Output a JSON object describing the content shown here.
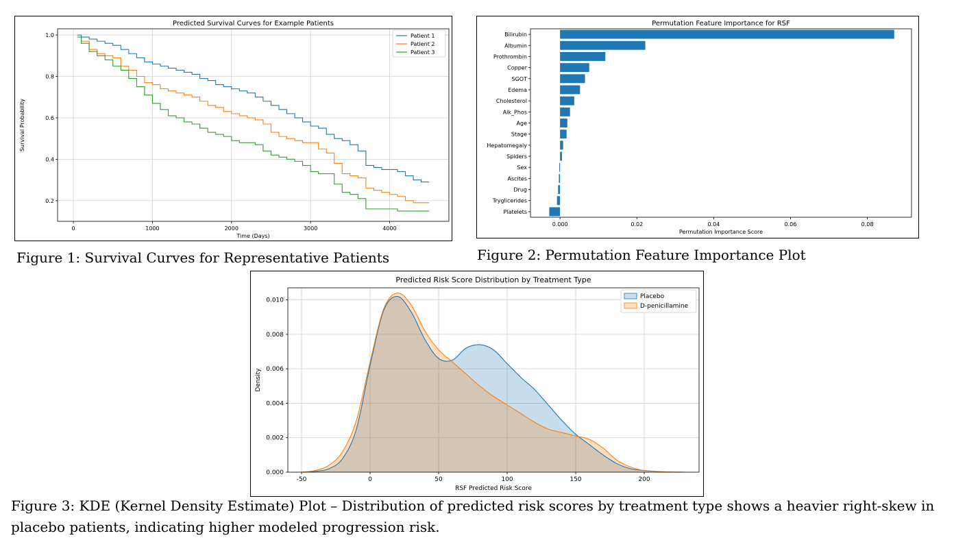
{
  "captions": {
    "fig1": "Figure 1: Survival Curves for Representative Patients",
    "fig2": "Figure 2: Permutation Feature Importance Plot",
    "fig3_line1": "Figure 3: KDE (Kernel Density Estimate) Plot – Distribution of predicted risk scores by treatment type shows a heavier right-skew in",
    "fig3_line2": "placebo patients, indicating higher modeled progression risk."
  },
  "chart_data": [
    {
      "type": "line",
      "title": "Predicted Survival Curves for Example Patients",
      "xlabel": "Time (Days)",
      "ylabel": "Survival Probability",
      "xlim": [
        -200,
        4750
      ],
      "ylim": [
        0.1,
        1.03
      ],
      "xticks": [
        0,
        1000,
        2000,
        3000,
        4000
      ],
      "yticks": [
        0.2,
        0.4,
        0.6,
        0.8,
        1.0
      ],
      "grid": true,
      "legend_position": "top-right",
      "step": true,
      "series": [
        {
          "name": "Patient 1",
          "color": "#1f77b4",
          "x": [
            50,
            100,
            200,
            300,
            400,
            500,
            600,
            700,
            800,
            900,
            1000,
            1100,
            1200,
            1300,
            1400,
            1500,
            1600,
            1700,
            1800,
            1900,
            2000,
            2100,
            2200,
            2300,
            2400,
            2500,
            2600,
            2700,
            2800,
            2900,
            3000,
            3100,
            3200,
            3300,
            3400,
            3500,
            3600,
            3700,
            3800,
            3900,
            4000,
            4100,
            4200,
            4300,
            4400,
            4500
          ],
          "y": [
            1.0,
            0.99,
            0.98,
            0.97,
            0.96,
            0.95,
            0.93,
            0.91,
            0.89,
            0.87,
            0.86,
            0.85,
            0.84,
            0.83,
            0.82,
            0.81,
            0.79,
            0.78,
            0.76,
            0.75,
            0.74,
            0.73,
            0.72,
            0.7,
            0.68,
            0.66,
            0.64,
            0.62,
            0.6,
            0.58,
            0.56,
            0.55,
            0.52,
            0.5,
            0.49,
            0.47,
            0.44,
            0.37,
            0.36,
            0.35,
            0.35,
            0.34,
            0.32,
            0.3,
            0.29,
            0.29
          ]
        },
        {
          "name": "Patient 2",
          "color": "#ff7f0e",
          "x": [
            50,
            100,
            200,
            300,
            400,
            500,
            600,
            700,
            800,
            900,
            1000,
            1100,
            1200,
            1300,
            1400,
            1500,
            1600,
            1700,
            1800,
            1900,
            2000,
            2100,
            2200,
            2300,
            2400,
            2500,
            2600,
            2700,
            2800,
            2900,
            3000,
            3100,
            3200,
            3300,
            3400,
            3500,
            3600,
            3700,
            3800,
            3900,
            4000,
            4100,
            4200,
            4300,
            4400,
            4500
          ],
          "y": [
            0.99,
            0.97,
            0.93,
            0.91,
            0.9,
            0.89,
            0.85,
            0.83,
            0.8,
            0.77,
            0.76,
            0.74,
            0.73,
            0.72,
            0.71,
            0.7,
            0.68,
            0.66,
            0.65,
            0.63,
            0.62,
            0.61,
            0.6,
            0.59,
            0.57,
            0.53,
            0.51,
            0.5,
            0.49,
            0.48,
            0.48,
            0.45,
            0.43,
            0.38,
            0.33,
            0.32,
            0.31,
            0.26,
            0.25,
            0.24,
            0.23,
            0.22,
            0.2,
            0.19,
            0.19,
            0.19
          ]
        },
        {
          "name": "Patient 3",
          "color": "#2ca02c",
          "x": [
            50,
            100,
            200,
            300,
            400,
            500,
            600,
            700,
            800,
            900,
            1000,
            1100,
            1200,
            1300,
            1400,
            1500,
            1600,
            1700,
            1800,
            1900,
            2000,
            2100,
            2200,
            2300,
            2400,
            2500,
            2600,
            2700,
            2800,
            2900,
            3000,
            3100,
            3200,
            3300,
            3400,
            3500,
            3600,
            3700,
            3800,
            3900,
            4000,
            4100,
            4200,
            4300,
            4400,
            4500
          ],
          "y": [
            0.99,
            0.96,
            0.92,
            0.9,
            0.88,
            0.85,
            0.83,
            0.79,
            0.75,
            0.71,
            0.67,
            0.64,
            0.61,
            0.6,
            0.58,
            0.57,
            0.55,
            0.53,
            0.52,
            0.51,
            0.49,
            0.48,
            0.48,
            0.47,
            0.44,
            0.42,
            0.41,
            0.4,
            0.39,
            0.37,
            0.34,
            0.33,
            0.33,
            0.28,
            0.24,
            0.23,
            0.21,
            0.16,
            0.16,
            0.16,
            0.16,
            0.15,
            0.15,
            0.15,
            0.15,
            0.15
          ]
        }
      ]
    },
    {
      "type": "bar",
      "orientation": "horizontal",
      "title": "Permutation Feature Importance for RSF",
      "xlabel": "Permutation Importance Score",
      "ylabel": "",
      "xlim": [
        -0.0077,
        0.0915
      ],
      "xticks": [
        0.0,
        0.02,
        0.04,
        0.06,
        0.08
      ],
      "xtick_labels": [
        "0.000",
        "0.02",
        "0.04",
        "0.06",
        "0.08"
      ],
      "grid": false,
      "color": "#1f77b4",
      "categories": [
        "Bilirubin",
        "Albumin",
        "Prothrombin",
        "Copper",
        "SGOT",
        "Edema",
        "Cholesterol",
        "Alk_Phos",
        "Age",
        "Stage",
        "Hepatomegaly",
        "Spiders",
        "Sex",
        "Ascites",
        "Drug",
        "Tryglicerides",
        "Platelets"
      ],
      "values": [
        0.087,
        0.0222,
        0.0118,
        0.0076,
        0.0065,
        0.0052,
        0.0037,
        0.0026,
        0.0019,
        0.0017,
        0.0008,
        0.0005,
        -0.0002,
        -0.0003,
        -0.0005,
        -0.0008,
        -0.0028
      ]
    },
    {
      "type": "area",
      "title": "Predicted Risk Score Distribution by Treatment Type",
      "xlabel": "RSF Predicted Risk Score",
      "ylabel": "Density",
      "xlim": [
        -60,
        240
      ],
      "ylim": [
        0,
        0.0107
      ],
      "xticks": [
        -50,
        0,
        50,
        100,
        150,
        200
      ],
      "yticks": [
        0.0,
        0.002,
        0.004,
        0.006,
        0.008,
        0.01
      ],
      "ytick_labels": [
        "0.000",
        "0.002",
        "0.004",
        "0.006",
        "0.008",
        "0.010"
      ],
      "grid": true,
      "legend_position": "top-right",
      "x": [
        -50,
        -40,
        -30,
        -20,
        -10,
        0,
        10,
        20,
        30,
        40,
        50,
        60,
        70,
        80,
        90,
        100,
        110,
        120,
        130,
        140,
        150,
        160,
        170,
        180,
        190,
        200,
        210,
        220,
        230
      ],
      "series": [
        {
          "name": "Placebo",
          "color": "#1f77b4",
          "values": [
            0.0,
            5e-05,
            0.0002,
            0.0008,
            0.0025,
            0.0062,
            0.0094,
            0.0102,
            0.0093,
            0.0077,
            0.0066,
            0.0065,
            0.0072,
            0.0074,
            0.0071,
            0.0063,
            0.0055,
            0.0048,
            0.0039,
            0.003,
            0.0022,
            0.0016,
            0.001,
            0.0005,
            0.0002,
            0.0001,
            4e-05,
            1e-05,
            0.0
          ]
        },
        {
          "name": "D-penicillamine",
          "color": "#ff7f0e",
          "values": [
            0.0,
            0.0001,
            0.0004,
            0.0012,
            0.003,
            0.0064,
            0.0095,
            0.0104,
            0.0097,
            0.0082,
            0.0071,
            0.0064,
            0.0057,
            0.005,
            0.0044,
            0.0039,
            0.0034,
            0.0029,
            0.0025,
            0.0023,
            0.0021,
            0.0019,
            0.0014,
            0.0007,
            0.0003,
            0.0001,
            4e-05,
            1e-05,
            0.0
          ]
        }
      ]
    }
  ]
}
